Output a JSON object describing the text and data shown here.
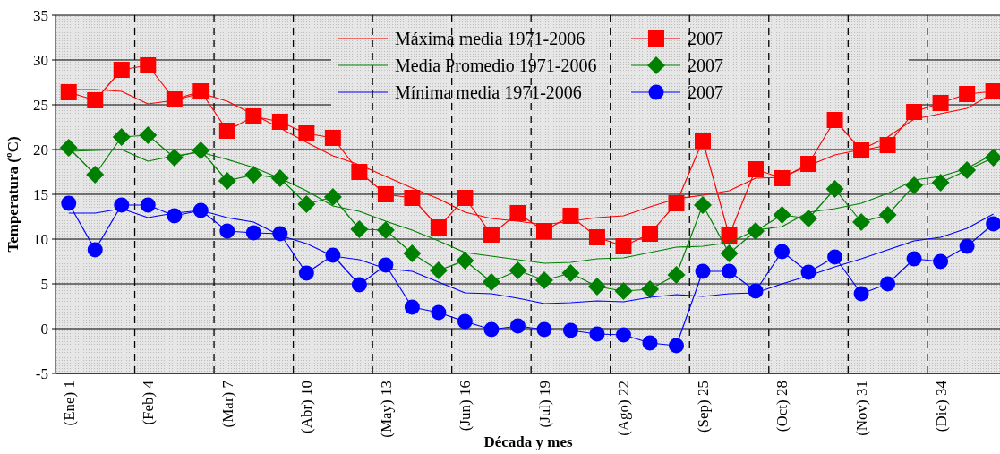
{
  "chart_data": {
    "type": "line",
    "xlabel": "Década y mes",
    "ylabel": "Temperatura (ºC)",
    "x": [
      1,
      2,
      3,
      4,
      5,
      6,
      7,
      8,
      9,
      10,
      11,
      12,
      13,
      14,
      15,
      16,
      17,
      18,
      19,
      20,
      21,
      22,
      23,
      24,
      25,
      26,
      27,
      28,
      29,
      30,
      31,
      32,
      33,
      34,
      35,
      36
    ],
    "xlim": [
      0.5,
      36.25
    ],
    "xticks": [
      {
        "value": 1,
        "label": "(Ene) 1"
      },
      {
        "value": 4,
        "label": "(Feb) 4"
      },
      {
        "value": 7,
        "label": "(Mar) 7"
      },
      {
        "value": 10,
        "label": "(Abr) 10"
      },
      {
        "value": 13,
        "label": "(May) 13"
      },
      {
        "value": 16,
        "label": "(Jun) 16"
      },
      {
        "value": 19,
        "label": "(Jul) 19"
      },
      {
        "value": 22,
        "label": "(Ago) 22"
      },
      {
        "value": 25,
        "label": "(Sep) 25"
      },
      {
        "value": 28,
        "label": "(Oct) 28"
      },
      {
        "value": 31,
        "label": "(Nov) 31"
      },
      {
        "value": 34,
        "label": "(Dic) 34"
      }
    ],
    "ylim": [
      -5,
      35
    ],
    "yticks": [
      -5,
      0,
      5,
      10,
      15,
      20,
      25,
      30,
      35
    ],
    "grid": "y",
    "legend": "top",
    "series": [
      {
        "name": "Máxima media 1971-2006",
        "color": "#ff0000",
        "marker": "none",
        "values": [
          26.7,
          26.7,
          26.5,
          25.1,
          25.5,
          26.3,
          25.4,
          23.9,
          22.4,
          20.8,
          19.3,
          18.3,
          17.0,
          15.7,
          14.5,
          13.0,
          12.3,
          12.0,
          11.6,
          12.0,
          12.4,
          12.6,
          13.6,
          14.5,
          14.9,
          15.4,
          16.8,
          16.9,
          18.2,
          19.4,
          20.0,
          21.4,
          23.4,
          24.0,
          24.6,
          26.3
        ]
      },
      {
        "name": "2007",
        "color": "#ff0000",
        "marker": "square",
        "values": [
          26.4,
          25.5,
          28.9,
          29.4,
          25.6,
          26.5,
          22.1,
          23.7,
          23.1,
          21.8,
          21.3,
          17.5,
          15.0,
          14.6,
          11.3,
          14.6,
          10.5,
          12.9,
          10.9,
          12.6,
          10.2,
          9.2,
          10.6,
          14.0,
          21.0,
          10.4,
          17.8,
          16.8,
          18.4,
          23.3,
          19.9,
          20.5,
          24.2,
          25.2,
          26.2,
          26.5
        ]
      },
      {
        "name": "Media Promedio 1971-2006",
        "color": "#008000",
        "marker": "none",
        "values": [
          19.8,
          19.9,
          20.0,
          18.7,
          19.3,
          19.7,
          18.9,
          18.0,
          16.8,
          15.4,
          13.7,
          13.1,
          12.0,
          11.0,
          9.8,
          8.5,
          8.1,
          7.7,
          7.3,
          7.4,
          7.8,
          7.9,
          8.5,
          9.1,
          9.2,
          9.6,
          11.0,
          11.4,
          13.0,
          13.4,
          14.0,
          15.1,
          16.6,
          17.0,
          17.9,
          19.5
        ]
      },
      {
        "name": "2007",
        "color": "#008000",
        "marker": "diamond",
        "values": [
          20.2,
          17.2,
          21.4,
          21.6,
          19.1,
          19.9,
          16.5,
          17.2,
          16.8,
          13.9,
          14.7,
          11.1,
          11.0,
          8.4,
          6.5,
          7.6,
          5.2,
          6.5,
          5.4,
          6.2,
          4.7,
          4.2,
          4.4,
          6.0,
          13.8,
          8.4,
          10.9,
          12.7,
          12.3,
          15.6,
          11.9,
          12.7,
          16.0,
          16.3,
          17.7,
          19.1
        ]
      },
      {
        "name": "Mínima media 1971-2006",
        "color": "#0000ff",
        "marker": "none",
        "values": [
          12.9,
          12.9,
          13.4,
          12.4,
          12.9,
          13.2,
          12.4,
          11.9,
          10.4,
          9.5,
          8.1,
          7.7,
          6.7,
          6.4,
          5.2,
          4.0,
          3.9,
          3.4,
          2.8,
          2.9,
          3.1,
          3.0,
          3.5,
          3.8,
          3.6,
          3.9,
          4.0,
          5.0,
          5.9,
          6.9,
          7.8,
          8.8,
          9.8,
          10.2,
          11.2,
          12.8
        ]
      },
      {
        "name": "2007",
        "color": "#0000ff",
        "marker": "circle",
        "values": [
          14.0,
          8.8,
          13.8,
          13.8,
          12.6,
          13.2,
          10.9,
          10.7,
          10.6,
          6.2,
          8.2,
          4.9,
          7.1,
          2.4,
          1.8,
          0.8,
          -0.1,
          0.3,
          -0.1,
          -0.2,
          -0.6,
          -0.7,
          -1.6,
          -1.9,
          6.4,
          6.4,
          4.2,
          8.6,
          6.3,
          8.0,
          3.9,
          5.0,
          7.8,
          7.5,
          9.2,
          11.7
        ]
      }
    ],
    "ref_lines": [
      {
        "axis": "x",
        "value": 3.5,
        "line_style": "dashed",
        "color": "#000000"
      },
      {
        "axis": "x",
        "value": 6.5,
        "line_style": "dashed",
        "color": "#000000"
      },
      {
        "axis": "x",
        "value": 9.5,
        "line_style": "dashed",
        "color": "#000000"
      },
      {
        "axis": "x",
        "value": 12.5,
        "line_style": "dashed",
        "color": "#000000"
      },
      {
        "axis": "x",
        "value": 15.5,
        "line_style": "dashed",
        "color": "#000000"
      },
      {
        "axis": "x",
        "value": 18.5,
        "line_style": "dashed",
        "color": "#000000"
      },
      {
        "axis": "x",
        "value": 21.5,
        "line_style": "dashed",
        "color": "#000000"
      },
      {
        "axis": "x",
        "value": 24.5,
        "line_style": "dashed",
        "color": "#000000"
      },
      {
        "axis": "x",
        "value": 27.5,
        "line_style": "dashed",
        "color": "#000000"
      },
      {
        "axis": "x",
        "value": 30.5,
        "line_style": "dashed",
        "color": "#000000"
      },
      {
        "axis": "x",
        "value": 33.5,
        "line_style": "dashed",
        "color": "#000000"
      }
    ]
  }
}
